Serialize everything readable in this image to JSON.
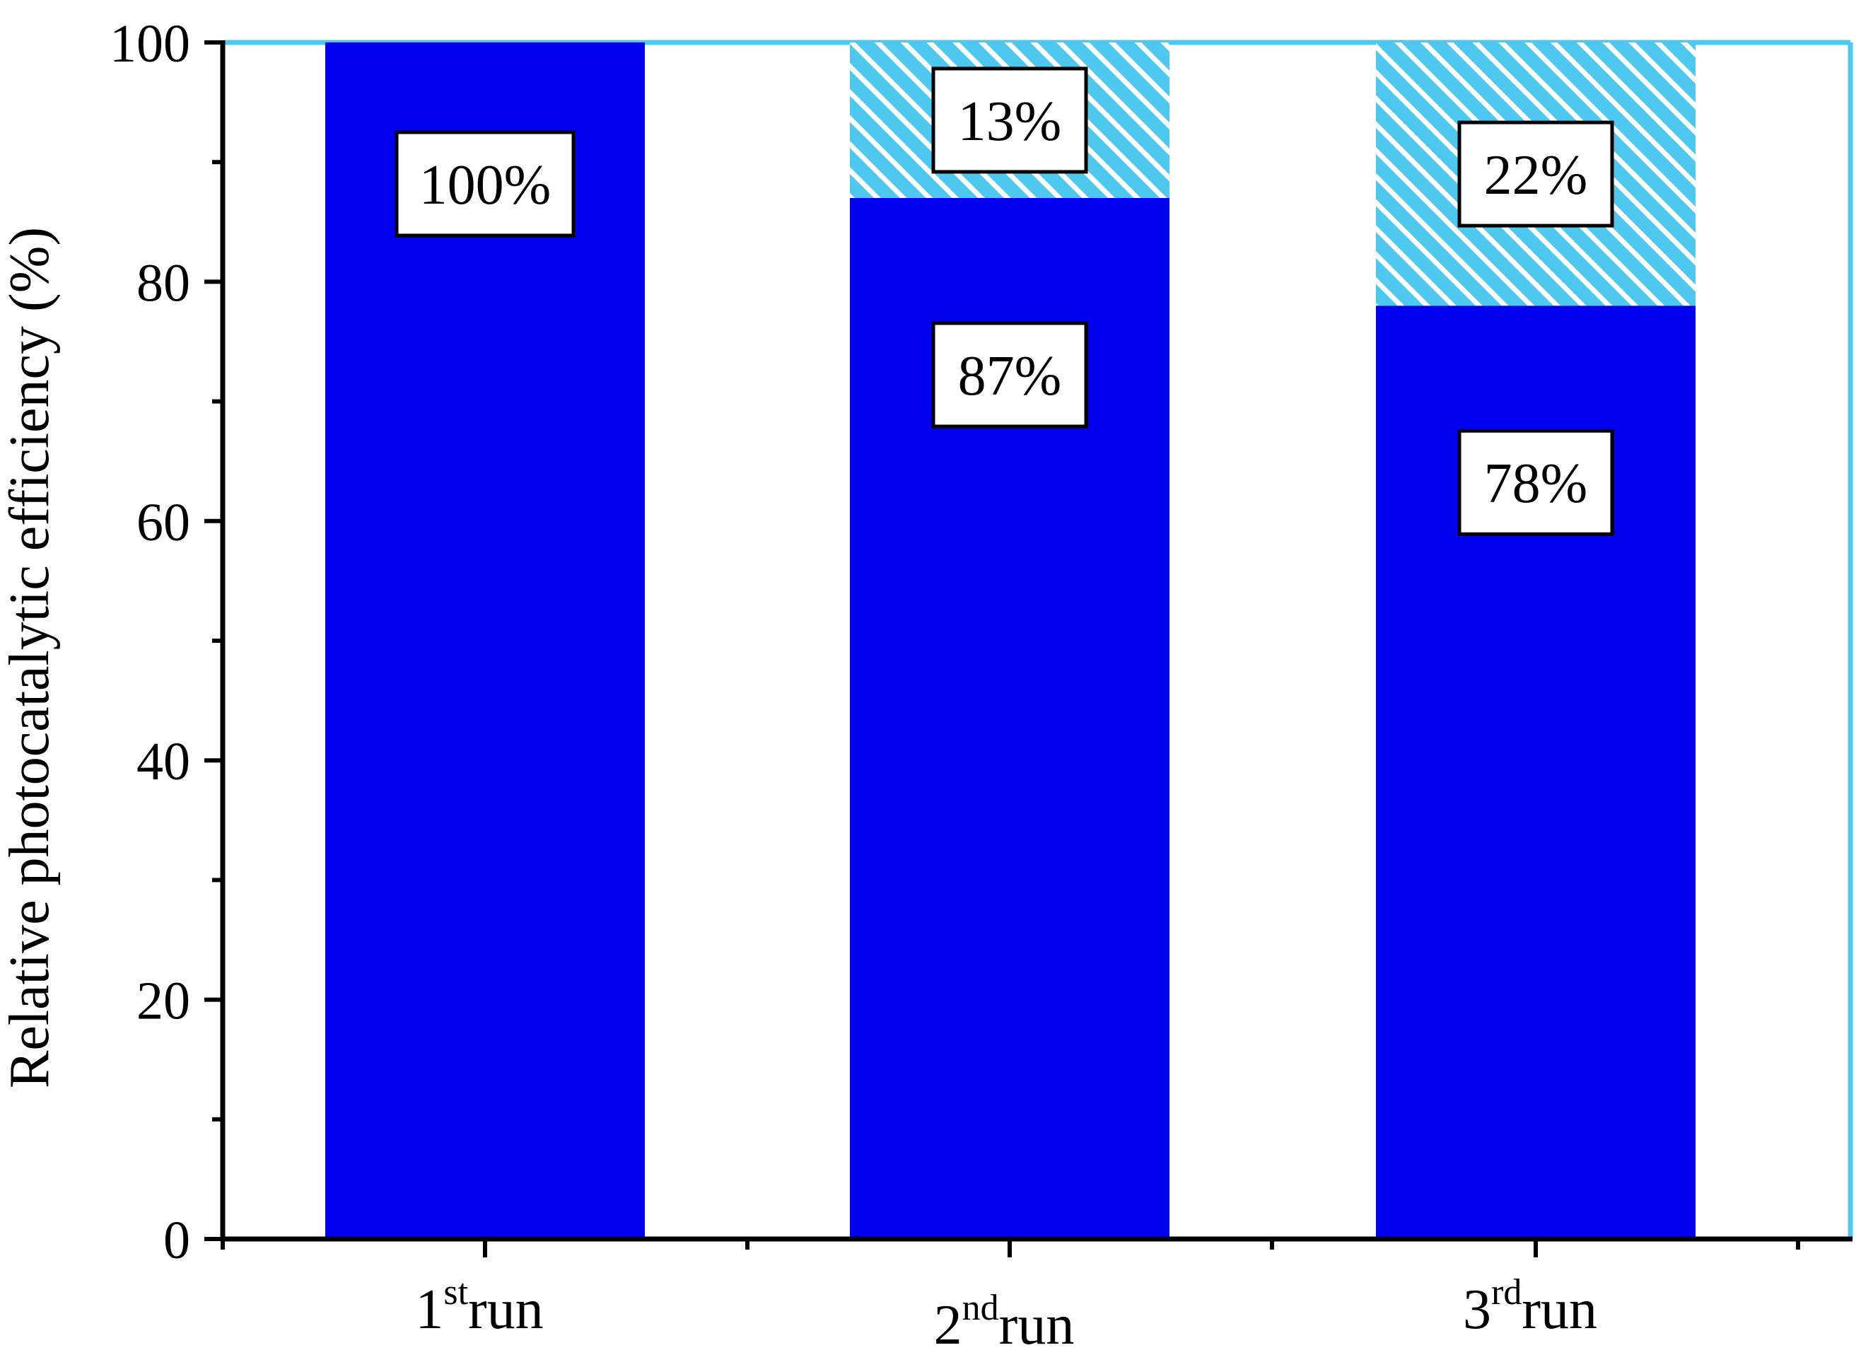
{
  "chart_data": {
    "type": "bar",
    "stacked": true,
    "categories": [
      {
        "num": "1",
        "sup": "st",
        "word": "run"
      },
      {
        "num": "2",
        "sup": "nd",
        "word": "run"
      },
      {
        "num": "3",
        "sup": "rd",
        "word": "run"
      }
    ],
    "series": [
      {
        "values": [
          100,
          87,
          78
        ],
        "labels": [
          "100%",
          "87%",
          "78%"
        ],
        "color": "#0000ee",
        "pattern": "solid"
      },
      {
        "values": [
          0,
          13,
          22
        ],
        "labels": [
          "",
          "13%",
          "22%"
        ],
        "color": "#4fc8f0",
        "pattern": "hatch"
      }
    ],
    "ylabel": "Relative photocatalytic efficiency (%)",
    "ylim": [
      0,
      100
    ],
    "yticks": [
      0,
      20,
      40,
      60,
      80,
      100
    ],
    "yticks_minor": [
      10,
      30,
      50,
      70,
      90
    ],
    "frame_color": "#4fc8f0",
    "grid": false
  }
}
